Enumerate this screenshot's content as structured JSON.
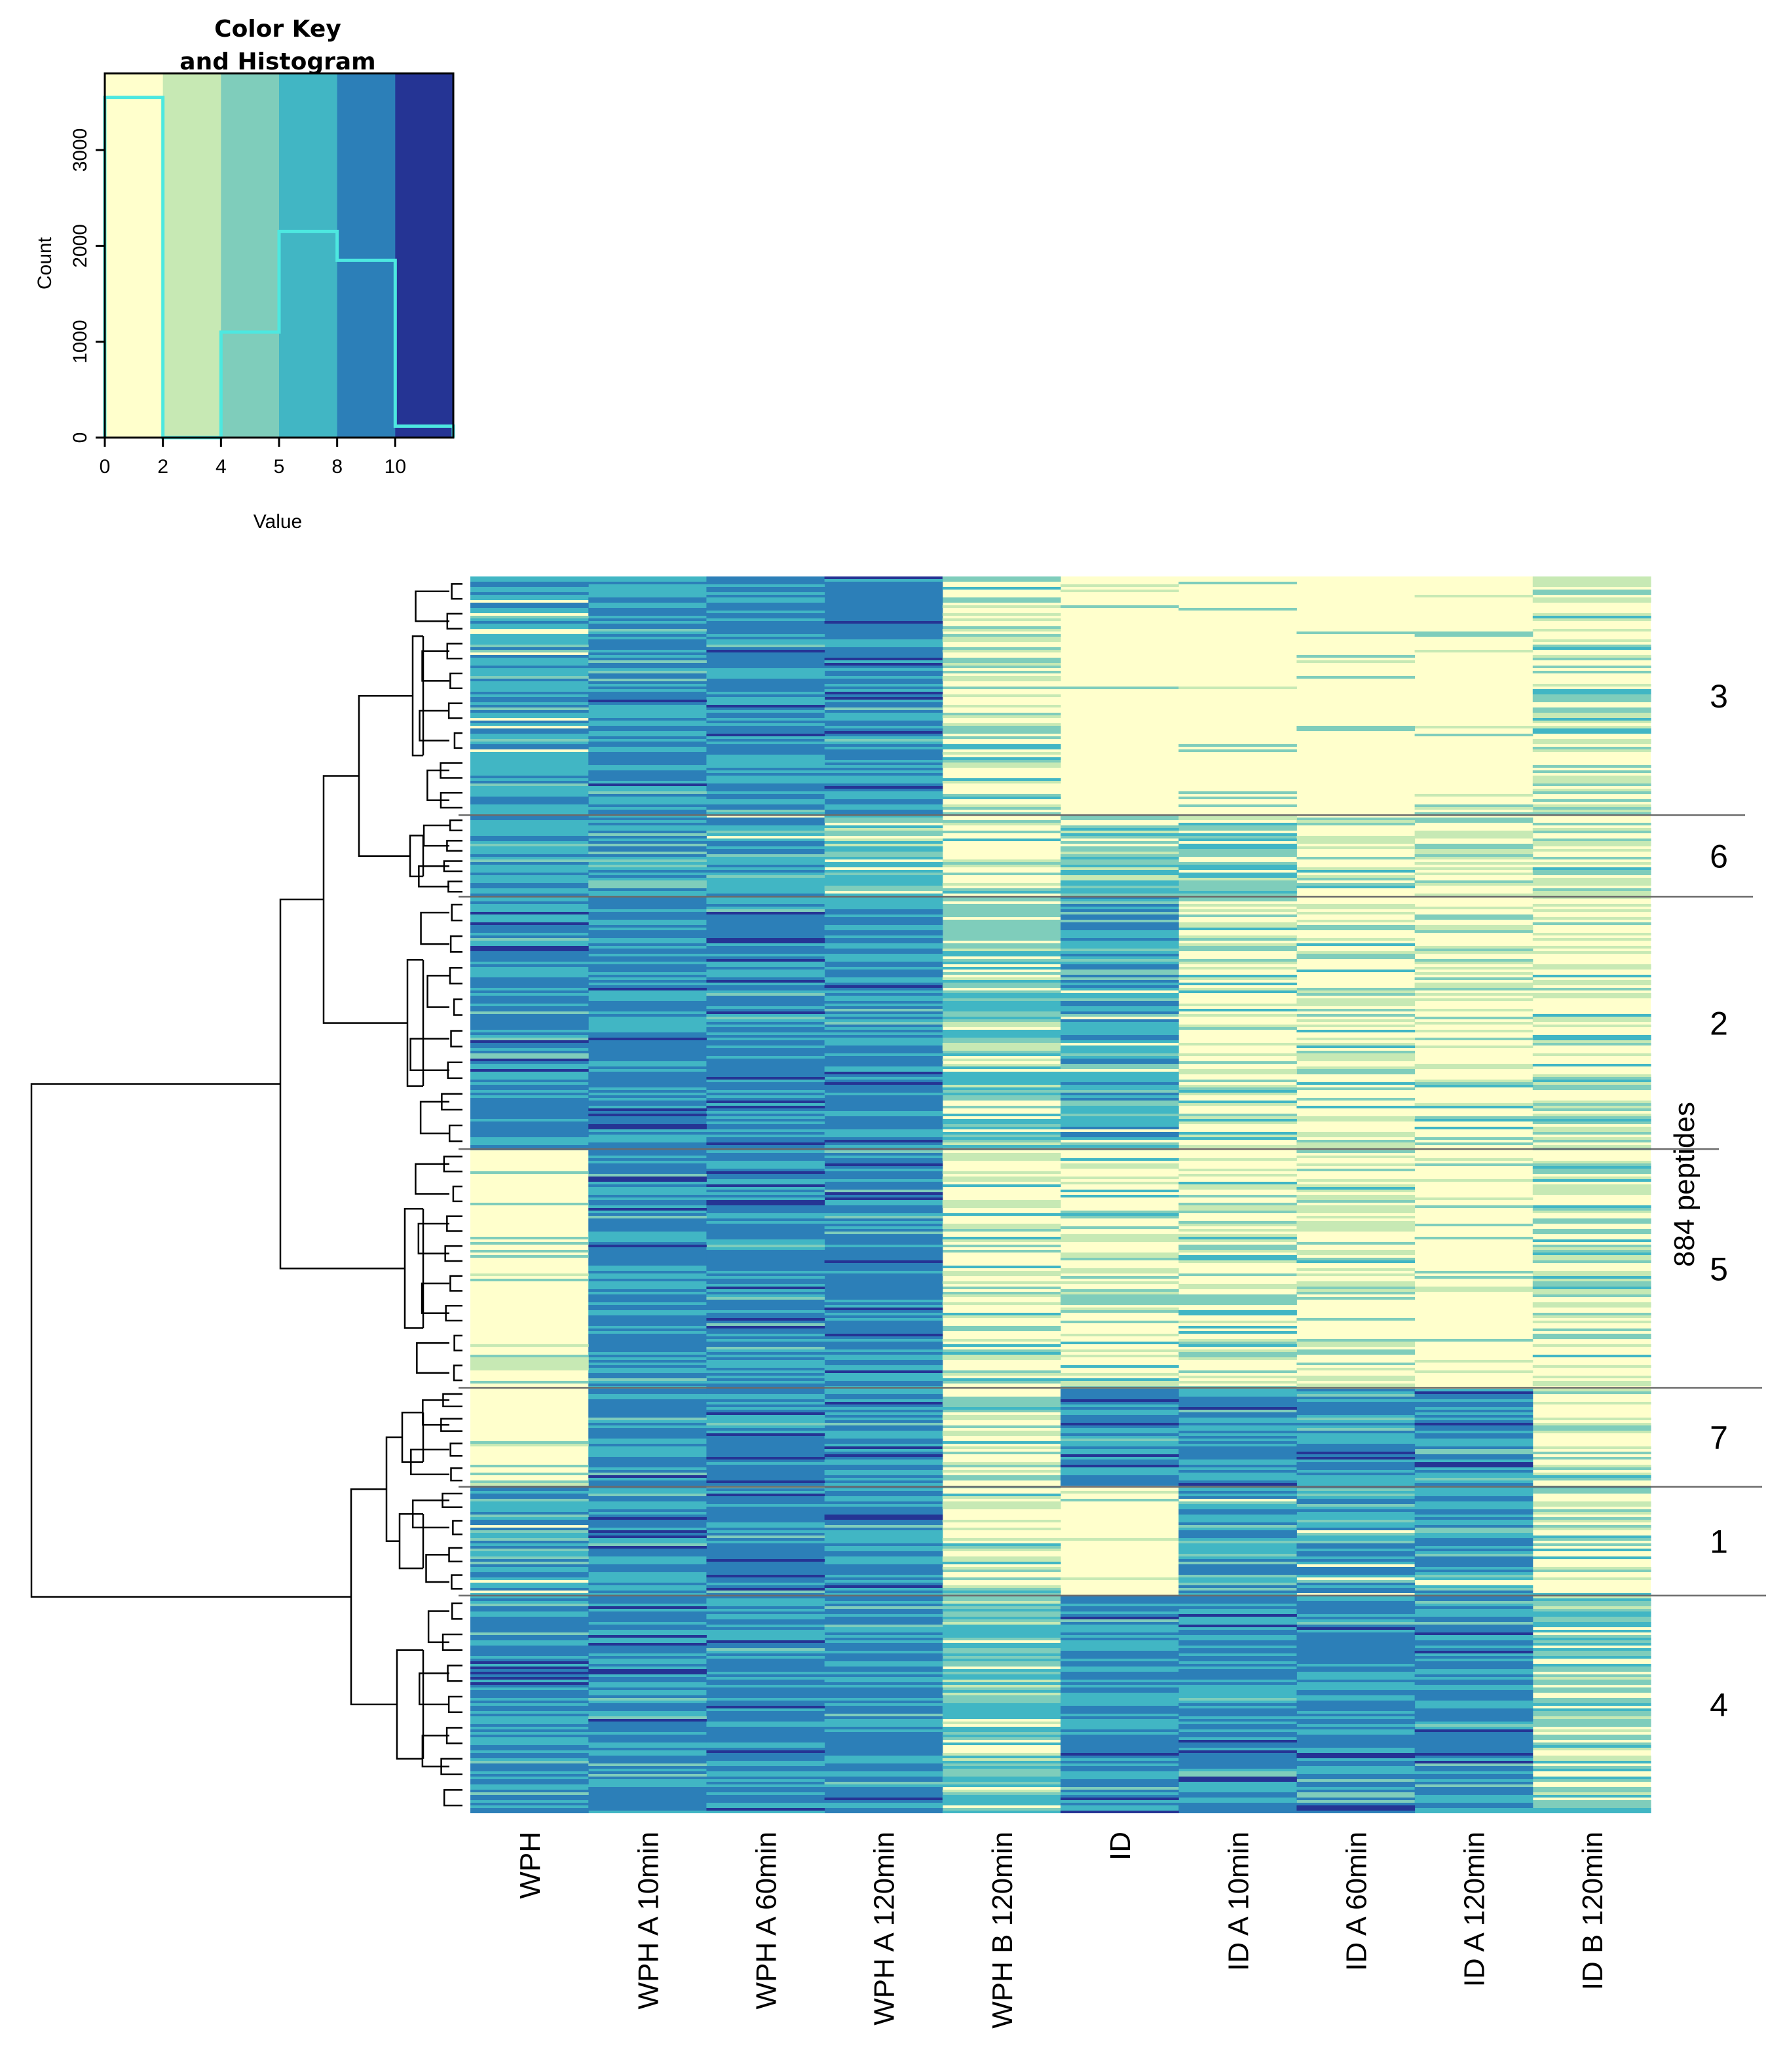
{
  "chart_data": {
    "type": "heatmap",
    "title": "",
    "y_label": "884 peptides",
    "columns": [
      "WPH",
      "WPH A 10min",
      "WPH A 60min",
      "WPH A 120min",
      "WPH B 120min",
      "ID",
      "ID A 10min",
      "ID A 60min",
      "ID A 120min",
      "ID B 120min"
    ],
    "clusters": [
      {
        "label": "3",
        "fraction": 0.193
      },
      {
        "label": "6",
        "fraction": 0.066
      },
      {
        "label": "2",
        "fraction": 0.204
      },
      {
        "label": "5",
        "fraction": 0.193
      },
      {
        "label": "7",
        "fraction": 0.08
      },
      {
        "label": "1",
        "fraction": 0.088
      },
      {
        "label": "4",
        "fraction": 0.176
      }
    ],
    "pattern": [
      [
        3,
        4,
        4,
        4,
        1,
        0,
        0,
        0,
        0,
        1
      ],
      [
        3,
        3,
        3,
        2,
        1,
        2,
        2,
        1,
        1,
        1
      ],
      [
        4,
        4,
        4,
        4,
        2,
        3,
        1,
        1,
        1,
        1
      ],
      [
        0,
        4,
        4,
        4,
        1,
        1,
        1,
        1,
        0,
        1
      ],
      [
        0,
        4,
        4,
        4,
        1,
        4,
        4,
        4,
        4,
        1
      ],
      [
        3,
        4,
        4,
        4,
        1,
        0,
        3,
        3,
        3,
        1
      ],
      [
        4,
        4,
        4,
        4,
        2,
        4,
        4,
        4,
        4,
        2
      ]
    ],
    "color_key": {
      "title": "Color Key\nand Histogram",
      "title_line1": "Color Key",
      "title_line2": "and Histogram",
      "x_label": "Value",
      "y_label": "Count",
      "x_ticks": [
        "0",
        "2",
        "4",
        "5",
        "8",
        "10"
      ],
      "y_ticks": [
        "0",
        "1000",
        "2000",
        "3000"
      ],
      "y_range": [
        0,
        3800
      ],
      "bins": [
        "0-2",
        "2-4",
        "4-5",
        "5-8",
        "8-10",
        "10-12"
      ],
      "counts": [
        3550,
        0,
        1100,
        2150,
        1850,
        120
      ],
      "colors": [
        "#ffffcc",
        "#c7e9b4",
        "#7fcdbb",
        "#41b6c4",
        "#2c7fb8",
        "#253494"
      ]
    }
  }
}
